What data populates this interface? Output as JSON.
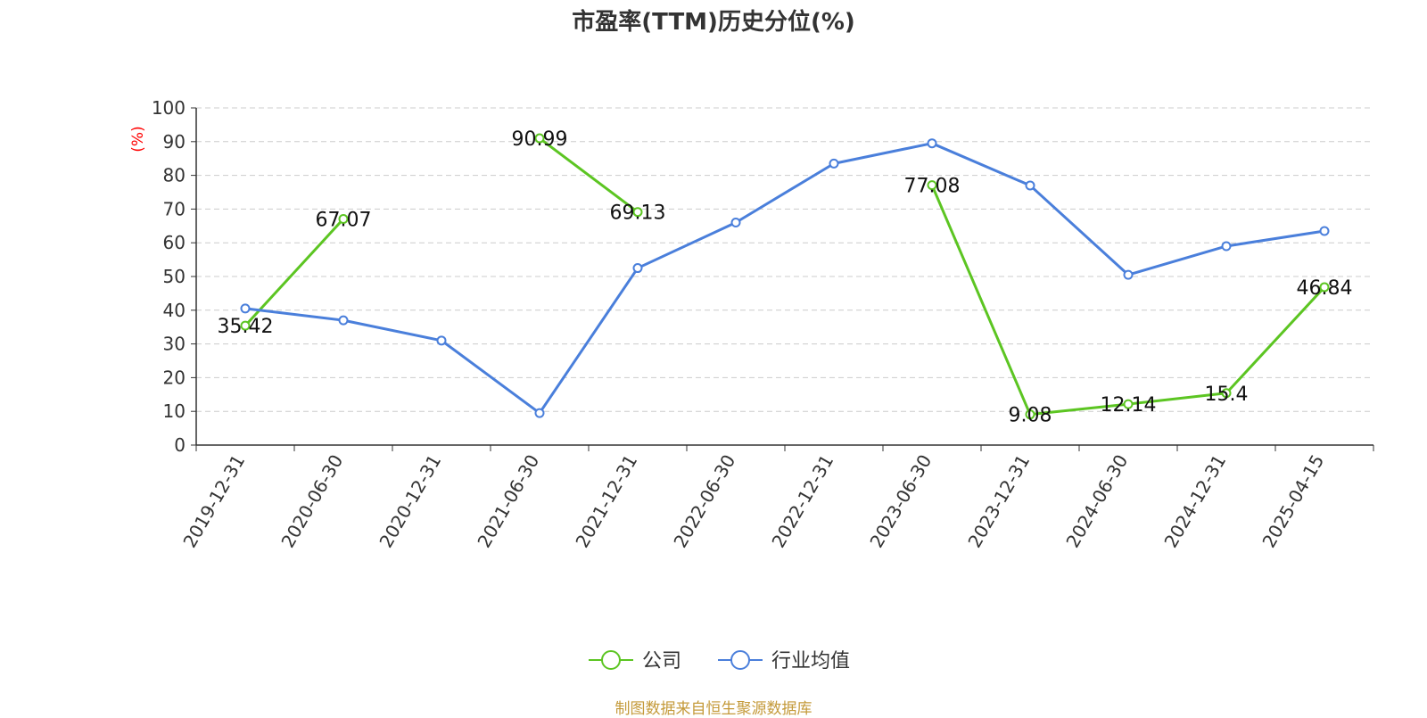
{
  "chart_data": {
    "type": "line",
    "title": "市盈率(TTM)历史分位(%)",
    "ylabel": "(%)",
    "xlabel": "",
    "ylim": [
      0,
      100
    ],
    "yticks": [
      0,
      10,
      20,
      30,
      40,
      50,
      60,
      70,
      80,
      90,
      100
    ],
    "categories": [
      "2019-12-31",
      "2020-06-30",
      "2020-12-31",
      "2021-06-30",
      "2021-12-31",
      "2022-06-30",
      "2022-12-31",
      "2023-06-30",
      "2023-12-31",
      "2024-06-30",
      "2024-12-31",
      "2025-04-15"
    ],
    "grid": true,
    "legend_position": "bottom",
    "series": [
      {
        "name": "公司",
        "color": "#5cc522",
        "values": [
          35.42,
          67.07,
          null,
          90.99,
          69.13,
          null,
          null,
          77.08,
          9.08,
          12.14,
          15.4,
          46.84
        ],
        "labels": [
          "35.42",
          "67.07",
          null,
          "90.99",
          "69.13",
          null,
          null,
          "77.08",
          "9.08",
          "12.14",
          "15.4",
          "46.84"
        ]
      },
      {
        "name": "行业均值",
        "color": "#4a7fdb",
        "values": [
          40.5,
          37,
          31,
          9.5,
          52.5,
          66,
          83.5,
          89.5,
          77,
          50.5,
          59,
          63.5
        ],
        "labels": []
      }
    ]
  },
  "footer": {
    "source": "制图数据来自恒生聚源数据库"
  },
  "colors": {
    "axis": "#333333",
    "grid": "#cccccc",
    "ylabel": "#ff0000",
    "source": "#c49a3a"
  }
}
